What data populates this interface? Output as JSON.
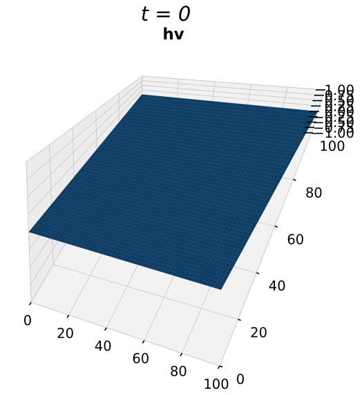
{
  "figure": {
    "suptitle": "t = 0",
    "axes_title": "hv"
  },
  "chart_data": {
    "type": "surface",
    "title": "hv",
    "suptitle": "t = 0",
    "x": {
      "range": [
        0,
        100
      ],
      "ticks": [
        0,
        20,
        40,
        60,
        80,
        100
      ],
      "tick_labels": [
        "0",
        "20",
        "40",
        "60",
        "80",
        "100"
      ]
    },
    "y": {
      "range": [
        0,
        100
      ],
      "ticks": [
        0,
        20,
        40,
        60,
        80,
        100
      ],
      "tick_labels": [
        "0",
        "20",
        "40",
        "60",
        "80",
        "100"
      ]
    },
    "z": {
      "range": [
        -1,
        1
      ],
      "ticks": [
        -1,
        -0.75,
        -0.5,
        -0.25,
        0,
        0.25,
        0.5,
        0.75,
        1
      ],
      "tick_labels": [
        "−1.00",
        "−0.75",
        "−0.50",
        "−0.25",
        "0.00",
        "0.25",
        "0.50",
        "0.75",
        "1.00"
      ]
    },
    "surface": {
      "constant_z": 0,
      "grid_resolution": 50,
      "color": "#0e3c62",
      "edge_color": "#4f7ea6"
    },
    "grid": true
  }
}
